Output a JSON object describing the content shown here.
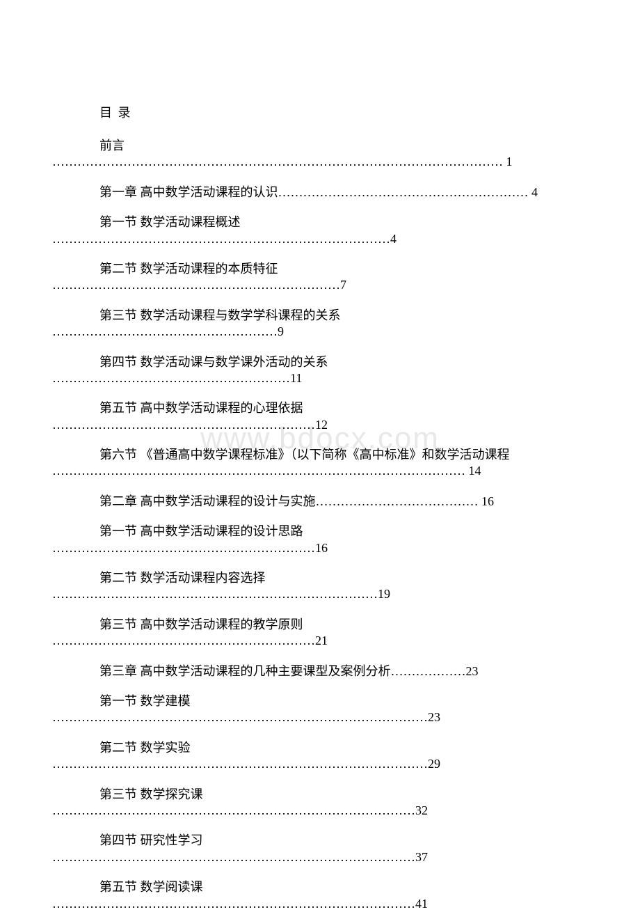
{
  "watermark": "www.bdocx.com",
  "title": "目 录",
  "colors": {
    "text": "#000000",
    "background": "#ffffff",
    "watermark": "#e8e8e8"
  },
  "typography": {
    "body_fontsize": 18,
    "watermark_fontsize": 44,
    "font_family": "SimSun"
  },
  "entries": [
    {
      "label": "前言",
      "dots": "………………………………………………………………………………………………",
      "page": " 1"
    },
    {
      "label": "第一章 高中数学活动课程的认识",
      "dots": "……………………………………………………",
      "page": " 4",
      "inline": true
    },
    {
      "label": "第一节 数学活动课程概述",
      "dots": "………………………………………………………………………",
      "page": "4"
    },
    {
      "label": "第二节 数学活动课程的本质特征",
      "dots": "……………………………………………………………",
      "page": "7"
    },
    {
      "label": "第三节 数学活动课程与数学学科课程的关系",
      "dots": "………………………………………………",
      "page": "9"
    },
    {
      "label": "第四节 数学活动课与数学课外活动的关系",
      "dots": "…………………………………………………",
      "page": "11"
    },
    {
      "label": "第五节 高中数学活动课程的心理依据",
      "dots": "………………………………………………………",
      "page": "12"
    },
    {
      "label": "第六节 《普通高中数学课程标准》（以下简称《高中标准》和数学活动课程",
      "dots": "………………………………………………………………………………………",
      "page": " 14"
    },
    {
      "label": "第二章 高中数学活动课程的设计与实施",
      "dots": "…………………………………",
      "page": " 16",
      "inline": true
    },
    {
      "label": "第一节 高中数学活动课程的设计思路",
      "dots": "………………………………………………………",
      "page": "16"
    },
    {
      "label": "第二节 数学活动课程内容选择",
      "dots": "……………………………………………………………………",
      "page": "19"
    },
    {
      "label": "第三节 高中数学活动课程的教学原则",
      "dots": "………………………………………………………",
      "page": "21"
    },
    {
      "label": "第三章 高中数学活动课程的几种主要课型及案例分析",
      "dots": "………………",
      "page": "23",
      "inline": true
    },
    {
      "label": "第一节 数学建模",
      "dots": "………………………………………………………………………………",
      "page": "23"
    },
    {
      "label": "第二节 数学实验",
      "dots": "………………………………………………………………………………",
      "page": "29"
    },
    {
      "label": "第三节 数学探究课",
      "dots": "……………………………………………………………………………",
      "page": "32"
    },
    {
      "label": "第四节 研究性学习",
      "dots": "……………………………………………………………………………",
      "page": "37"
    },
    {
      "label": "第五节 数学阅读课",
      "dots": "……………………………………………………………………………",
      "page": "41"
    }
  ]
}
